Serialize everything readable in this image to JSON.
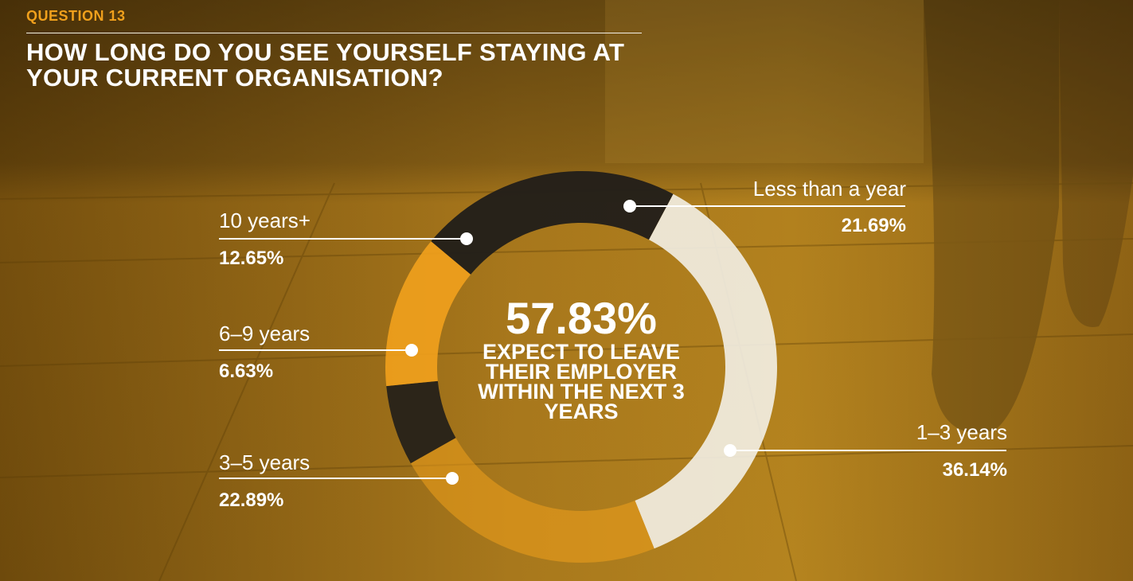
{
  "question_label": "QUESTION 13",
  "title": "HOW LONG DO YOU SEE YOURSELF STAYING AT YOUR CURRENT ORGANISATION?",
  "center": {
    "value": "57.83%",
    "caption": "EXPECT TO LEAVE THEIR EMPLOYER WITHIN THE NEXT 3 YEARS"
  },
  "colors": {
    "accent": "#f0a01c",
    "dark": "#231f1a",
    "light": "#f3efe6",
    "line": "#ffffff"
  },
  "chart_data": {
    "type": "pie",
    "variant": "donut",
    "start_angle_deg": 28,
    "direction": "clockwise",
    "title": "HOW LONG DO YOU SEE YOURSELF STAYING AT YOUR CURRENT ORGANISATION?",
    "center_value": "57.83%",
    "center_caption": "EXPECT TO LEAVE THEIR EMPLOYER WITHIN THE NEXT 3 YEARS",
    "slices": [
      {
        "label": "1–3 years",
        "value": 36.14,
        "display": "36.14%",
        "color": "#f3efe6",
        "opacity": 0.9
      },
      {
        "label": "3–5 years",
        "value": 22.89,
        "display": "22.89%",
        "color": "#f0a01c",
        "opacity": 0.55
      },
      {
        "label": "6–9 years",
        "value": 6.63,
        "display": "6.63%",
        "color": "#231f1a",
        "opacity": 0.93
      },
      {
        "label": "10 years+",
        "value": 12.65,
        "display": "12.65%",
        "color": "#f0a01c",
        "opacity": 0.92
      },
      {
        "label": "Less than a year",
        "value": 21.69,
        "display": "21.69%",
        "color": "#231f1a",
        "opacity": 0.97
      }
    ]
  }
}
